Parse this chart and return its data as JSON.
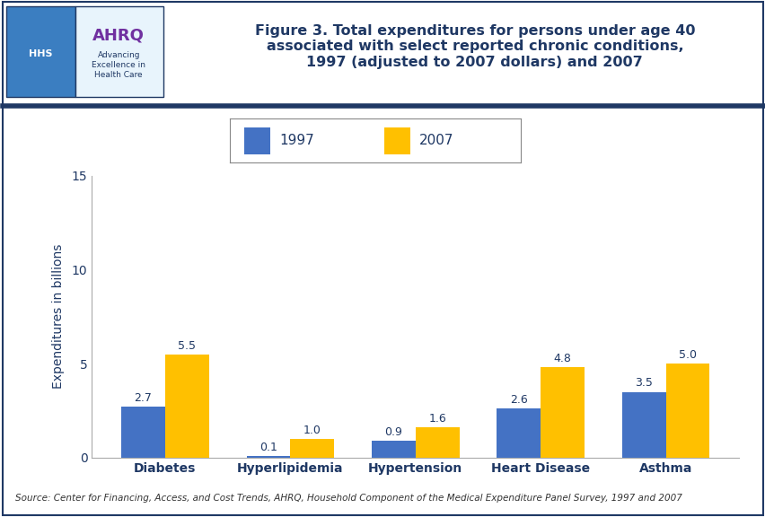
{
  "categories": [
    "Diabetes",
    "Hyperlipidemia",
    "Hypertension",
    "Heart Disease",
    "Asthma"
  ],
  "values_1997": [
    2.7,
    0.1,
    0.9,
    2.6,
    3.5
  ],
  "values_2007": [
    5.5,
    1.0,
    1.6,
    4.8,
    5.0
  ],
  "bar_color_1997": "#4472C4",
  "bar_color_2007": "#FFC000",
  "title_line1": "Figure 3. Total expenditures for persons under age 40",
  "title_line2": "associated with select reported chronic conditions,",
  "title_line3": "1997 (adjusted to 2007 dollars) and 2007",
  "ylabel": "Expenditures in billions",
  "legend_1997": "1997",
  "legend_2007": "2007",
  "ylim": [
    0,
    15
  ],
  "yticks": [
    0,
    5,
    10,
    15
  ],
  "source_text": "Source: Center for Financing, Access, and Cost Trends, AHRQ, Household Component of the Medical Expenditure Panel Survey, 1997 and 2007",
  "title_color": "#1F3864",
  "axis_color": "#1F3864",
  "background_color": "#FFFFFF",
  "header_bg_color": "#FFFFFF",
  "thick_line_color": "#1F3864",
  "border_color": "#1F3864",
  "bar_width": 0.35,
  "hhs_logo_color": "#3B7EC1",
  "ahrq_text_color": "#7030A0",
  "ahrq_sub_color": "#1F3864",
  "logo_box_left_bg": "#3B7EC1",
  "logo_box_right_bg": "#E8F4FC"
}
